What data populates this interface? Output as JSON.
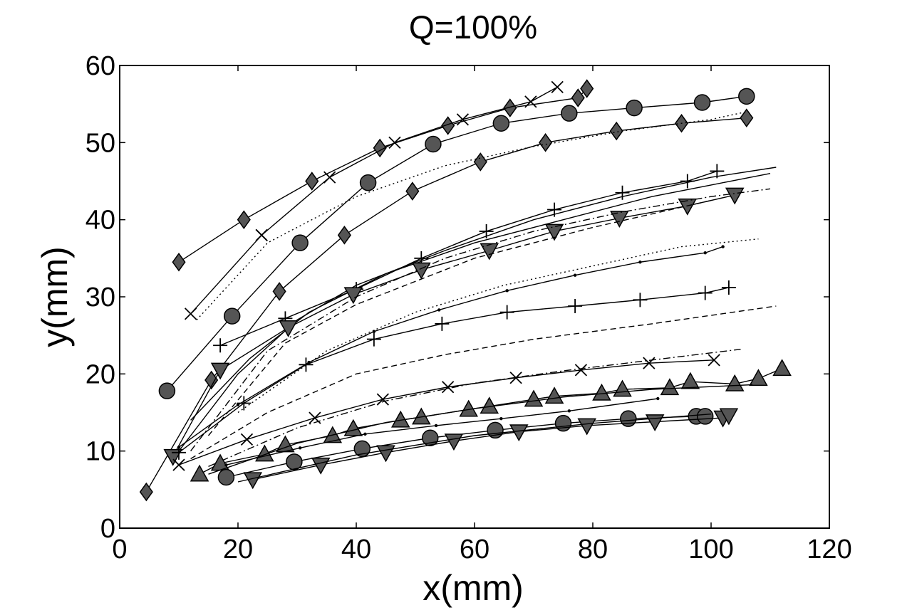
{
  "chart_data": {
    "type": "line",
    "title": "Q=100%",
    "xlabel": "x(mm)",
    "ylabel": "y(mm)",
    "xlim": [
      0,
      120
    ],
    "ylim": [
      0,
      60
    ],
    "x_ticks": [
      "0",
      "20",
      "40",
      "60",
      "80",
      "100",
      "120"
    ],
    "y_ticks": [
      "0",
      "10",
      "20",
      "30",
      "40",
      "50",
      "60"
    ],
    "colors": {
      "marker_fill": "#555555",
      "line": "#000000",
      "frame": "#000000"
    },
    "series": [
      {
        "name": "diamond-upper",
        "marker": "diamond",
        "dash": "solid",
        "points": [
          [
            10,
            34.5
          ],
          [
            21,
            40
          ],
          [
            32.5,
            45
          ],
          [
            44,
            49.3
          ],
          [
            55.5,
            52.2
          ],
          [
            66,
            54.5
          ],
          [
            77.5,
            55.8
          ],
          [
            79,
            57
          ]
        ]
      },
      {
        "name": "x-upper",
        "marker": "x",
        "dash": "solid",
        "points": [
          [
            24,
            38
          ],
          [
            35.5,
            45.5
          ],
          [
            46.5,
            50
          ],
          [
            58,
            53
          ],
          [
            69.5,
            55.3
          ],
          [
            74,
            57.2
          ]
        ]
      },
      {
        "name": "x-upper-start",
        "marker": "x",
        "dash": "solid",
        "points": [
          [
            12,
            27.8
          ],
          [
            24,
            38
          ]
        ]
      },
      {
        "name": "circle-upper",
        "marker": "circle",
        "dash": "solid",
        "points": [
          [
            8,
            17.8
          ],
          [
            19,
            27.5
          ],
          [
            30.5,
            37
          ],
          [
            42,
            44.8
          ],
          [
            53,
            49.8
          ],
          [
            64.5,
            52.5
          ],
          [
            76,
            53.8
          ],
          [
            87,
            54.5
          ],
          [
            98.5,
            55.2
          ],
          [
            106,
            56
          ]
        ]
      },
      {
        "name": "diamond-mid",
        "marker": "diamond",
        "dash": "solid",
        "points": [
          [
            4.5,
            4.7
          ],
          [
            15.5,
            19.2
          ],
          [
            27,
            30.7
          ],
          [
            38,
            38
          ],
          [
            49.5,
            43.7
          ],
          [
            61,
            47.5
          ],
          [
            72,
            50
          ],
          [
            84,
            51.5
          ],
          [
            95,
            52.5
          ],
          [
            106,
            53.2
          ]
        ]
      },
      {
        "name": "dotted-upper",
        "marker": "none",
        "dash": "dotted",
        "points": [
          [
            13,
            27
          ],
          [
            25,
            37
          ],
          [
            40,
            43
          ],
          [
            55,
            47
          ],
          [
            70,
            49.5
          ],
          [
            85,
            51.5
          ],
          [
            100,
            53
          ],
          [
            106,
            54
          ]
        ]
      },
      {
        "name": "plus-upper",
        "marker": "plus",
        "dash": "solid",
        "points": [
          [
            17,
            23.7
          ],
          [
            28,
            27.2
          ],
          [
            40,
            31
          ],
          [
            51,
            35
          ],
          [
            62,
            38.5
          ],
          [
            73.5,
            41.3
          ],
          [
            85,
            43.5
          ],
          [
            96,
            45
          ],
          [
            101,
            46.3
          ]
        ]
      },
      {
        "name": "plain-upper-1",
        "marker": "none",
        "dash": "solid",
        "points": [
          [
            9,
            9
          ],
          [
            20,
            20
          ],
          [
            30,
            27
          ],
          [
            40,
            31.5
          ],
          [
            55,
            36
          ],
          [
            70,
            40
          ],
          [
            85,
            43
          ],
          [
            100,
            45.5
          ],
          [
            111,
            46.8
          ]
        ]
      },
      {
        "name": "plain-upper-2",
        "marker": "none",
        "dash": "solid",
        "points": [
          [
            12,
            14
          ],
          [
            22,
            22
          ],
          [
            32,
            28
          ],
          [
            45,
            33
          ],
          [
            60,
            37
          ],
          [
            75,
            40
          ],
          [
            90,
            43
          ],
          [
            100,
            44.5
          ],
          [
            110,
            46
          ]
        ]
      },
      {
        "name": "triangle-down-upper",
        "marker": "triangle-down",
        "dash": "solid",
        "points": [
          [
            9,
            9.3
          ],
          [
            17,
            20.5
          ],
          [
            28.5,
            26
          ],
          [
            39.5,
            30.3
          ],
          [
            51,
            33.5
          ],
          [
            62.5,
            36
          ],
          [
            73.5,
            38.5
          ],
          [
            84.5,
            40.2
          ],
          [
            96,
            41.8
          ],
          [
            104,
            43.2
          ]
        ]
      },
      {
        "name": "dashdot-upper",
        "marker": "none",
        "dash": "dashdot",
        "points": [
          [
            12,
            10
          ],
          [
            25,
            23
          ],
          [
            40,
            30
          ],
          [
            55,
            35
          ],
          [
            70,
            38.5
          ],
          [
            85,
            41
          ],
          [
            100,
            43
          ],
          [
            110,
            44
          ]
        ]
      },
      {
        "name": "dashed-upper",
        "marker": "none",
        "dash": "dashed",
        "points": [
          [
            15,
            12
          ],
          [
            28,
            24
          ],
          [
            40,
            29
          ],
          [
            60,
            35
          ],
          [
            80,
            39
          ],
          [
            100,
            42.5
          ]
        ]
      },
      {
        "name": "dotted-mid",
        "marker": "none",
        "dash": "dotted",
        "points": [
          [
            20,
            15
          ],
          [
            35,
            23
          ],
          [
            50,
            28
          ],
          [
            65,
            31.5
          ],
          [
            80,
            34
          ],
          [
            95,
            36.5
          ],
          [
            108,
            37.5
          ]
        ]
      },
      {
        "name": "dot-mid",
        "marker": "dot",
        "dash": "solid",
        "points": [
          [
            10,
            10.5
          ],
          [
            20,
            16
          ],
          [
            32,
            21.5
          ],
          [
            43,
            25.5
          ],
          [
            54,
            28.3
          ],
          [
            65.5,
            30.8
          ],
          [
            77,
            32.8
          ],
          [
            88,
            34.5
          ],
          [
            99,
            35.7
          ],
          [
            102,
            36.5
          ]
        ]
      },
      {
        "name": "plus-mid",
        "marker": "plus",
        "dash": "solid",
        "points": [
          [
            10,
            9.8
          ],
          [
            21,
            16.2
          ],
          [
            31.5,
            21.2
          ],
          [
            43,
            24.5
          ],
          [
            54.5,
            26.5
          ],
          [
            65.5,
            28
          ],
          [
            77,
            28.8
          ],
          [
            88,
            29.6
          ],
          [
            99,
            30.5
          ],
          [
            103,
            31.2
          ]
        ]
      },
      {
        "name": "dashed-mid",
        "marker": "none",
        "dash": "dashed",
        "points": [
          [
            12,
            9
          ],
          [
            25,
            15
          ],
          [
            40,
            20
          ],
          [
            55,
            22.5
          ],
          [
            70,
            24.5
          ],
          [
            90,
            26.5
          ],
          [
            111,
            28.8
          ]
        ]
      },
      {
        "name": "x-lower",
        "marker": "x",
        "dash": "solid",
        "points": [
          [
            10,
            8.2
          ],
          [
            21.5,
            11.5
          ],
          [
            33,
            14.3
          ],
          [
            44.5,
            16.7
          ],
          [
            55.5,
            18.3
          ],
          [
            67,
            19.5
          ],
          [
            78,
            20.5
          ],
          [
            89.5,
            21.4
          ],
          [
            100.5,
            21.8
          ]
        ]
      },
      {
        "name": "dashdot-lower",
        "marker": "none",
        "dash": "dashdot",
        "points": [
          [
            15,
            8
          ],
          [
            30,
            13
          ],
          [
            45,
            16.5
          ],
          [
            60,
            18.8
          ],
          [
            75,
            20.4
          ],
          [
            90,
            21.8
          ],
          [
            105,
            23.2
          ]
        ]
      },
      {
        "name": "triangle-up-lower",
        "marker": "triangle-up",
        "dash": "solid",
        "points": [
          [
            13.5,
            7
          ],
          [
            17,
            8.4
          ],
          [
            24.5,
            9.6
          ],
          [
            28,
            10.8
          ],
          [
            36,
            12
          ],
          [
            39.5,
            12.9
          ],
          [
            47.5,
            14
          ],
          [
            51,
            14.4
          ],
          [
            59,
            15.4
          ],
          [
            62.5,
            15.8
          ],
          [
            70,
            16.7
          ],
          [
            73.5,
            17.1
          ],
          [
            81.5,
            17.5
          ],
          [
            85,
            18
          ],
          [
            93,
            18.2
          ],
          [
            96.5,
            19
          ],
          [
            104,
            18.7
          ],
          [
            108,
            19.4
          ],
          [
            112,
            20.7
          ]
        ]
      },
      {
        "name": "plain-lower-1",
        "marker": "none",
        "dash": "solid",
        "points": [
          [
            15,
            7
          ],
          [
            30,
            11
          ],
          [
            45,
            13.7
          ],
          [
            60,
            15.5
          ],
          [
            75,
            17
          ],
          [
            90,
            18
          ],
          [
            107,
            18.6
          ]
        ]
      },
      {
        "name": "dot-lower",
        "marker": "dot",
        "dash": "solid",
        "points": [
          [
            18,
            8.2
          ],
          [
            30.5,
            10.4
          ],
          [
            41.5,
            12.2
          ],
          [
            53.5,
            13.3
          ],
          [
            64.5,
            14.2
          ],
          [
            76,
            15.2
          ],
          [
            91,
            16.8
          ]
        ]
      },
      {
        "name": "circle-lower",
        "marker": "circle",
        "dash": "solid",
        "points": [
          [
            18,
            6.6
          ],
          [
            29.5,
            8.6
          ],
          [
            41,
            10.3
          ],
          [
            52.5,
            11.7
          ],
          [
            63.5,
            12.7
          ],
          [
            75,
            13.6
          ],
          [
            86,
            14.2
          ],
          [
            97.5,
            14.5
          ],
          [
            99,
            14.5
          ]
        ]
      },
      {
        "name": "triangle-down-lower",
        "marker": "triangle-down",
        "dash": "solid",
        "points": [
          [
            22.5,
            6.3
          ],
          [
            34,
            8.2
          ],
          [
            45,
            9.8
          ],
          [
            56.5,
            11.3
          ],
          [
            67.5,
            12.5
          ],
          [
            79,
            13.3
          ],
          [
            90.5,
            13.8
          ],
          [
            102,
            14.3
          ],
          [
            103,
            14.6
          ]
        ]
      },
      {
        "name": "plain-lower-2",
        "marker": "none",
        "dash": "solid",
        "points": [
          [
            20,
            6
          ],
          [
            40,
            9.5
          ],
          [
            60,
            12
          ],
          [
            80,
            13.6
          ],
          [
            100,
            14.8
          ]
        ]
      }
    ]
  }
}
